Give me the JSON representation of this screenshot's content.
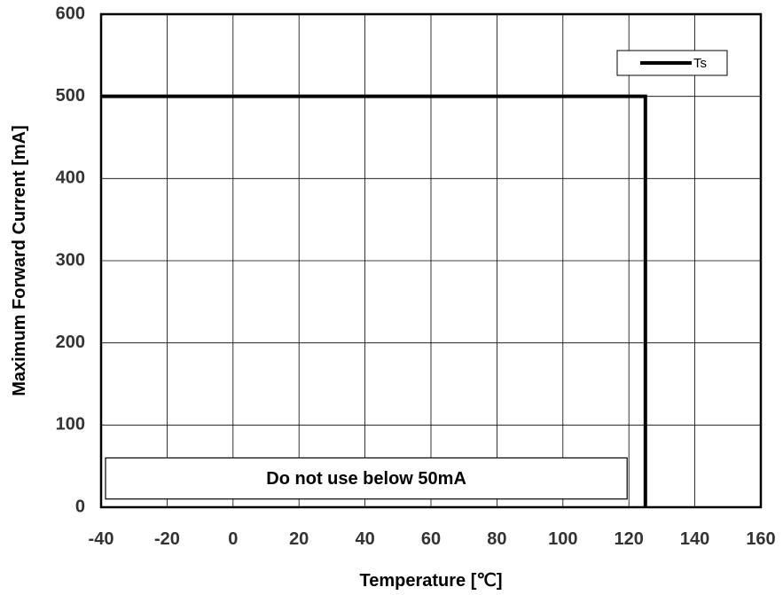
{
  "chart_data": {
    "type": "line",
    "title": "",
    "xlabel": "Temperature [℃]",
    "ylabel": "Maximum Forward Current [mA]",
    "xlim": [
      -40,
      160
    ],
    "ylim": [
      0,
      600
    ],
    "x_ticks": [
      -40,
      -20,
      0,
      20,
      40,
      60,
      80,
      100,
      120,
      140,
      160
    ],
    "y_ticks": [
      0,
      100,
      200,
      300,
      400,
      500,
      600
    ],
    "x_tick_labels": [
      "-40",
      "-20",
      "0",
      "20",
      "40",
      "60",
      "80",
      "100",
      "120",
      "140",
      "160"
    ],
    "y_tick_labels": [
      "0",
      "100",
      "200",
      "300",
      "400",
      "500",
      "600"
    ],
    "grid": true,
    "legend_position": "top-right",
    "series": [
      {
        "name": "Ts",
        "color": "#000000",
        "x": [
          -40,
          125,
          125
        ],
        "y": [
          500,
          500,
          0
        ]
      }
    ],
    "annotations": [
      {
        "text": "Do not use below 50mA",
        "x_range": [
          -40,
          120
        ],
        "y_range": [
          10,
          60
        ]
      }
    ]
  }
}
